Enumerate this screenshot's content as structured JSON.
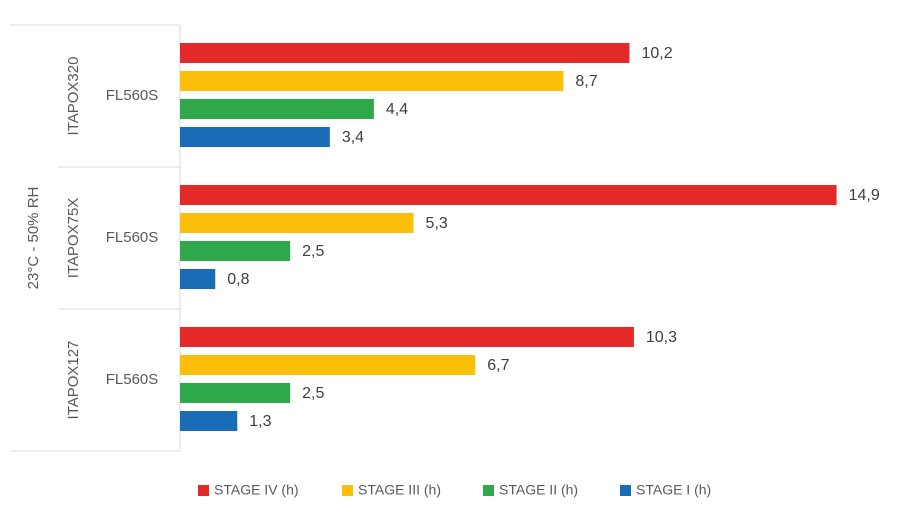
{
  "chart_data": {
    "type": "bar",
    "orientation": "horizontal",
    "title": "",
    "xlabel": "",
    "ylabel": "",
    "outer_category": "23°C - 50% RH",
    "groups": [
      {
        "product": "ITAPOX320",
        "subcategory": "FL560S"
      },
      {
        "product": "ITAPOX75X",
        "subcategory": "FL560S"
      },
      {
        "product": "ITAPOX127",
        "subcategory": "FL560S"
      }
    ],
    "series": [
      {
        "name": "STAGE IV (h)",
        "color": "#e32a28",
        "values": [
          10.2,
          14.9,
          10.3
        ],
        "labels": [
          "10,2",
          "14,9",
          "10,3"
        ]
      },
      {
        "name": "STAGE III (h)",
        "color": "#fbbf0a",
        "values": [
          8.7,
          5.3,
          6.7
        ],
        "labels": [
          "8,7",
          "5,3",
          "6,7"
        ]
      },
      {
        "name": "STAGE II (h)",
        "color": "#2ea84b",
        "values": [
          4.4,
          2.5,
          2.5
        ],
        "labels": [
          "4,4",
          "2,5",
          "2,5"
        ]
      },
      {
        "name": "STAGE I (h)",
        "color": "#1a6cb7",
        "values": [
          3.4,
          0.8,
          1.3
        ],
        "labels": [
          "3,4",
          "0,8",
          "1,3"
        ]
      }
    ],
    "xlim": [
      0,
      15
    ],
    "grid": false,
    "legend_position": "bottom"
  }
}
